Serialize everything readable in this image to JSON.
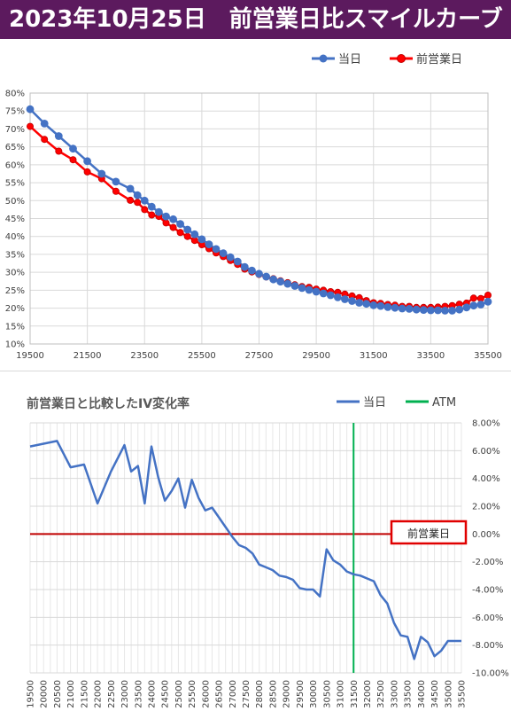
{
  "header": {
    "title": "2023年10月25日　前営業日比スマイルカーブ"
  },
  "colors": {
    "header_bg": "#5c1a5e",
    "today": "#4472c4",
    "prev_day": "#ff0000",
    "atm": "#00b050",
    "zero_line": "#c00000",
    "grid": "#d9d9d9"
  },
  "chart_data": [
    {
      "type": "line",
      "title": "",
      "xlabel": "",
      "ylabel": "",
      "xlim": [
        19500,
        35500
      ],
      "ylim": [
        10,
        80
      ],
      "y_unit": "%",
      "x_ticks": [
        "19500",
        "21500",
        "23500",
        "25500",
        "27500",
        "29500",
        "31500",
        "33500",
        "35500"
      ],
      "y_ticks": [
        "10%",
        "15%",
        "20%",
        "25%",
        "30%",
        "35%",
        "40%",
        "45%",
        "50%",
        "55%",
        "60%",
        "65%",
        "70%",
        "75%",
        "80%"
      ],
      "legend": {
        "position": "top-right",
        "entries": [
          "当日",
          "前営業日"
        ]
      },
      "grid": true,
      "series": [
        {
          "name": "当日",
          "color": "#4472c4",
          "x": [
            19500,
            20000,
            20500,
            21000,
            21500,
            22000,
            22500,
            23000,
            23250,
            23500,
            23750,
            24000,
            24250,
            24500,
            24750,
            25000,
            25250,
            25500,
            25750,
            26000,
            26250,
            26500,
            26750,
            27000,
            27250,
            27500,
            27750,
            28000,
            28250,
            28500,
            28750,
            29000,
            29250,
            29500,
            29750,
            30000,
            30250,
            30500,
            30750,
            31000,
            31250,
            31500,
            31750,
            32000,
            32250,
            32500,
            32750,
            33000,
            33250,
            33500,
            33750,
            34000,
            34250,
            34500,
            34750,
            35000,
            35250,
            35500
          ],
          "y": [
            75.5,
            71.5,
            68,
            64.5,
            61,
            57.5,
            55.3,
            53.3,
            51.5,
            50,
            48.3,
            46.8,
            45.6,
            44.8,
            43.5,
            41.9,
            40.6,
            39.2,
            37.8,
            36.5,
            35.3,
            34.2,
            33,
            31.5,
            30.5,
            29.6,
            28.8,
            28,
            27.4,
            26.8,
            26.2,
            25.6,
            25.1,
            24.6,
            24.1,
            23.6,
            23,
            22.5,
            22,
            21.5,
            21.2,
            20.8,
            20.6,
            20.3,
            20.1,
            19.9,
            19.8,
            19.6,
            19.5,
            19.4,
            19.4,
            19.3,
            19.3,
            19.6,
            20.2,
            20.7,
            21,
            21.8
          ]
        },
        {
          "name": "前営業日",
          "color": "#ff0000",
          "x": [
            19500,
            20000,
            20500,
            21000,
            21500,
            22000,
            22500,
            23000,
            23250,
            23500,
            23750,
            24000,
            24250,
            24500,
            24750,
            25000,
            25250,
            25500,
            25750,
            26000,
            26250,
            26500,
            26750,
            27000,
            27250,
            27500,
            27750,
            28000,
            28250,
            28500,
            28750,
            29000,
            29250,
            29500,
            29750,
            30000,
            30250,
            30500,
            30750,
            31000,
            31250,
            31500,
            31750,
            32000,
            32250,
            32500,
            32750,
            33000,
            33250,
            33500,
            33750,
            34000,
            34250,
            34500,
            34750,
            35000,
            35250,
            35500
          ],
          "y": [
            70.7,
            67.1,
            63.8,
            61.4,
            58,
            56.1,
            52.6,
            50.1,
            49.5,
            47.5,
            46,
            45.6,
            43.8,
            42.5,
            41.1,
            40,
            38.9,
            37.7,
            36.6,
            35.4,
            34.4,
            33.3,
            32.2,
            30.9,
            30.1,
            29.4,
            28.7,
            28.2,
            27.6,
            27.1,
            26.5,
            26,
            25.8,
            25.3,
            25,
            24.6,
            24.4,
            23.9,
            23.4,
            22.9,
            22.1,
            21.5,
            21.3,
            21,
            20.8,
            20.5,
            20.5,
            20.2,
            20.2,
            20.2,
            20.3,
            20.5,
            20.7,
            21.1,
            21.4,
            22.8,
            22.7,
            23.6
          ]
        }
      ]
    },
    {
      "type": "line",
      "title": "前営業日と比較したIV変化率",
      "xlabel": "",
      "ylabel": "",
      "xlim": [
        19500,
        35500
      ],
      "ylim": [
        -10,
        8
      ],
      "y_unit": "%",
      "categories": [
        "19500",
        "19750",
        "20000",
        "20250",
        "20500",
        "20750",
        "21000",
        "21250",
        "21500",
        "21750",
        "22000",
        "22250",
        "22500",
        "22750",
        "23000",
        "23250",
        "23500",
        "23750",
        "24000",
        "24250",
        "24500",
        "24750",
        "25000",
        "25250",
        "25500",
        "25750",
        "26000",
        "26250",
        "26500",
        "26750",
        "27000",
        "27250",
        "27500",
        "27750",
        "28000",
        "28250",
        "28500",
        "28750",
        "29000",
        "29250",
        "29500",
        "29750",
        "30000",
        "30250",
        "30500",
        "30750",
        "31000",
        "31250",
        "31500",
        "31750",
        "32000",
        "32250",
        "32500",
        "32750",
        "33000",
        "33250",
        "33500",
        "33750",
        "34000",
        "34250",
        "34500",
        "34750",
        "35000",
        "35250",
        "35500"
      ],
      "x_tick_labels": [
        "19500",
        "20000",
        "20500",
        "21000",
        "21500",
        "22000",
        "22500",
        "23000",
        "23500",
        "24000",
        "24500",
        "25000",
        "25500",
        "26000",
        "26500",
        "27000",
        "27500",
        "28000",
        "28500",
        "29000",
        "29500",
        "30000",
        "30500",
        "31000",
        "31500",
        "32000",
        "32500",
        "33000",
        "33500",
        "34000",
        "34500",
        "35000",
        "35500"
      ],
      "y_ticks": [
        "8.00%",
        "6.00%",
        "4.00%",
        "2.00%",
        "0.00%",
        "-2.00%",
        "-4.00%",
        "-6.00%",
        "-8.00%",
        "-10.00%"
      ],
      "legend": {
        "position": "top-right",
        "entries": [
          "当日",
          "ATM"
        ]
      },
      "atm_strike": 31500,
      "baseline_label": "前営業日",
      "grid": true,
      "series": [
        {
          "name": "当日",
          "color": "#4472c4",
          "x": [
            19500,
            20500,
            21000,
            21500,
            22000,
            22500,
            23000,
            23250,
            23500,
            23750,
            24000,
            24250,
            24500,
            24750,
            25000,
            25250,
            25500,
            25750,
            26000,
            26250,
            26500,
            26750,
            27000,
            27250,
            27500,
            27750,
            28000,
            28250,
            28500,
            28750,
            29000,
            29250,
            29500,
            29750,
            30000,
            30250,
            30500,
            30750,
            31000,
            31250,
            31500,
            31750,
            32000,
            32250,
            32500,
            32750,
            33000,
            33250,
            33500,
            33750,
            34000,
            34250,
            34500,
            34750,
            35000,
            35250,
            35500
          ],
          "y": [
            6.3,
            6.7,
            4.8,
            5,
            2.2,
            4.5,
            6.4,
            4.5,
            4.9,
            2.2,
            6.3,
            4.1,
            2.4,
            3.1,
            4,
            1.9,
            3.9,
            2.6,
            1.7,
            1.9,
            1.2,
            0.5,
            -0.2,
            -0.8,
            -1,
            -1.4,
            -2.2,
            -2.4,
            -2.6,
            -3,
            -3.1,
            -3.3,
            -3.9,
            -4,
            -4,
            -4.5,
            -1.1,
            -1.9,
            -2.2,
            -2.7,
            -2.9,
            -3,
            -3.2,
            -3.4,
            -4.4,
            -5,
            -6.4,
            -7.3,
            -7.4,
            -9,
            -7.4,
            -7.8,
            -8.8,
            -8.4,
            -7.7,
            -7.7,
            -7.7
          ]
        }
      ]
    }
  ]
}
